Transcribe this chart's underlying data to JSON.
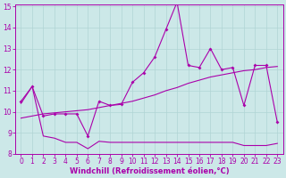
{
  "xlabel": "Windchill (Refroidissement éolien,°C)",
  "background_color": "#cce8e8",
  "grid_color": "#b0d4d4",
  "line_color": "#aa00aa",
  "x": [
    0,
    1,
    2,
    3,
    4,
    5,
    6,
    7,
    8,
    9,
    10,
    11,
    12,
    13,
    14,
    15,
    16,
    17,
    18,
    19,
    20,
    21,
    22,
    23
  ],
  "line1_x": [
    0,
    1,
    2,
    3,
    4,
    5,
    6,
    7,
    8,
    9,
    10,
    11,
    12,
    13,
    14,
    15,
    16,
    17,
    18,
    19,
    20,
    21,
    22,
    23
  ],
  "line1_y": [
    10.5,
    11.2,
    9.8,
    9.9,
    9.9,
    9.9,
    8.85,
    10.5,
    10.3,
    10.35,
    11.4,
    11.85,
    12.6,
    13.9,
    15.2,
    12.2,
    12.1,
    13.0,
    12.0,
    12.1,
    10.3,
    12.2,
    12.2,
    9.5
  ],
  "line2_x": [
    0,
    1,
    2,
    3,
    4,
    5,
    6,
    7,
    8,
    9,
    10,
    11,
    12,
    13,
    14,
    15,
    16,
    17,
    18,
    19,
    20,
    21,
    22,
    23
  ],
  "line2_y": [
    9.7,
    9.8,
    9.9,
    9.95,
    10.0,
    10.05,
    10.1,
    10.2,
    10.3,
    10.4,
    10.5,
    10.65,
    10.8,
    11.0,
    11.15,
    11.35,
    11.5,
    11.65,
    11.75,
    11.85,
    11.95,
    12.0,
    12.1,
    12.15
  ],
  "line3_x": [
    0,
    1,
    2,
    3,
    4,
    5,
    6,
    7,
    8,
    9,
    10,
    11,
    12,
    13,
    14,
    15,
    16,
    17,
    18,
    19,
    20,
    21,
    22,
    23
  ],
  "line3_y": [
    10.4,
    11.2,
    8.85,
    8.75,
    8.55,
    8.55,
    8.25,
    8.6,
    8.55,
    8.55,
    8.55,
    8.55,
    8.55,
    8.55,
    8.55,
    8.55,
    8.55,
    8.55,
    8.55,
    8.55,
    8.4,
    8.4,
    8.4,
    8.5
  ],
  "ylim": [
    8,
    15
  ],
  "xlim": [
    -0.5,
    23.5
  ],
  "yticks": [
    8,
    9,
    10,
    11,
    12,
    13,
    14,
    15
  ],
  "xticks": [
    0,
    1,
    2,
    3,
    4,
    5,
    6,
    7,
    8,
    9,
    10,
    11,
    12,
    13,
    14,
    15,
    16,
    17,
    18,
    19,
    20,
    21,
    22,
    23
  ],
  "tick_fontsize": 5.5,
  "label_fontsize": 6.0
}
